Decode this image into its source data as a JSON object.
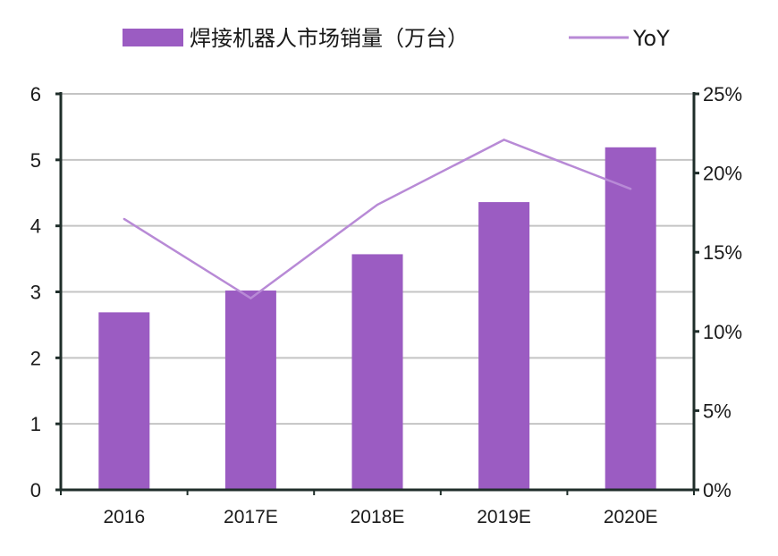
{
  "chart_data": {
    "type": "bar",
    "categories": [
      "2016",
      "2017E",
      "2018E",
      "2019E",
      "2020E"
    ],
    "series": [
      {
        "name": "焊接机器人市场销量（万台）",
        "type": "bar",
        "axis": "left",
        "values": [
          2.69,
          3.02,
          3.57,
          4.36,
          5.19
        ],
        "color": "#9b5cc2"
      },
      {
        "name": "YoY",
        "type": "line",
        "axis": "right",
        "values": [
          17.1,
          12.1,
          18.0,
          22.1,
          19.0
        ],
        "unit": "%",
        "color": "#b88ad6"
      }
    ],
    "y_left": {
      "lim": [
        0,
        6
      ],
      "ticks": [
        "0",
        "1",
        "2",
        "3",
        "4",
        "5",
        "6"
      ]
    },
    "y_right": {
      "lim": [
        0,
        25
      ],
      "ticks": [
        "0%",
        "5%",
        "10%",
        "15%",
        "20%",
        "25%"
      ]
    },
    "grid": true,
    "legend": "top"
  }
}
